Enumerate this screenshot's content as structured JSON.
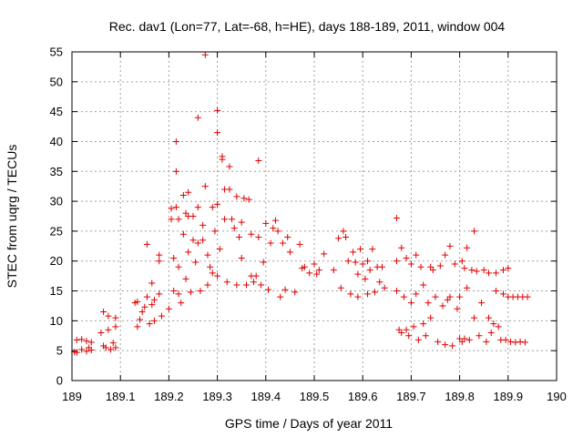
{
  "chart_data": {
    "type": "scatter",
    "title": "Rec. dav1 (Lon=77, Lat=-68, h=HE), days 188-189, 2011, window 004",
    "xlabel": "GPS time / Days of year 2011",
    "ylabel": "STEC from uqrg / TECUs",
    "xlim": [
      189,
      190
    ],
    "ylim": [
      0,
      55
    ],
    "xticks": [
      189,
      189.1,
      189.2,
      189.3,
      189.4,
      189.5,
      189.6,
      189.7,
      189.8,
      189.9,
      190
    ],
    "xtick_labels": [
      "189",
      "189.1",
      "189.2",
      "189.3",
      "189.4",
      "189.5",
      "189.6",
      "189.7",
      "189.8",
      "189.9",
      "190"
    ],
    "yticks": [
      0,
      5,
      10,
      15,
      20,
      25,
      30,
      35,
      40,
      45,
      50,
      55
    ],
    "ytick_labels": [
      "0",
      "5",
      "10",
      "15",
      "20",
      "25",
      "30",
      "35",
      "40",
      "45",
      "50",
      "55"
    ],
    "grid": true,
    "marker": "plus",
    "color": "#e00000",
    "series": [
      {
        "points": [
          [
            189.005,
            4.8
          ],
          [
            189.01,
            4.7
          ],
          [
            189.01,
            6.8
          ],
          [
            189.02,
            5.2
          ],
          [
            189.02,
            6.9
          ],
          [
            189.03,
            4.9
          ],
          [
            189.03,
            6.6
          ],
          [
            189.035,
            5.5
          ],
          [
            189.04,
            5.1
          ],
          [
            189.04,
            6.4
          ],
          [
            189.06,
            8.0
          ],
          [
            189.065,
            11.5
          ],
          [
            189.065,
            5.8
          ],
          [
            189.07,
            5.5
          ],
          [
            189.075,
            8.5
          ],
          [
            189.075,
            10.8
          ],
          [
            189.08,
            5.2
          ],
          [
            189.085,
            6.3
          ],
          [
            189.09,
            5.5
          ],
          [
            189.09,
            9.0
          ],
          [
            189.09,
            10.5
          ],
          [
            189.13,
            13.0
          ],
          [
            189.135,
            13.2
          ],
          [
            189.135,
            9.0
          ],
          [
            189.14,
            10.2
          ],
          [
            189.145,
            11.5
          ],
          [
            189.15,
            12.3
          ],
          [
            189.155,
            22.8
          ],
          [
            189.155,
            14.0
          ],
          [
            189.16,
            9.5
          ],
          [
            189.165,
            16.3
          ],
          [
            189.165,
            12.7
          ],
          [
            189.17,
            13.5
          ],
          [
            189.17,
            10.0
          ],
          [
            189.18,
            14.5
          ],
          [
            189.18,
            20.0
          ],
          [
            189.18,
            21.0
          ],
          [
            189.185,
            10.8
          ],
          [
            189.2,
            12.0
          ],
          [
            189.205,
            28.8
          ],
          [
            189.205,
            27.0
          ],
          [
            189.21,
            20.5
          ],
          [
            189.21,
            15.0
          ],
          [
            189.215,
            40.0
          ],
          [
            189.215,
            35.0
          ],
          [
            189.215,
            29.0
          ],
          [
            189.22,
            27.0
          ],
          [
            189.22,
            19.0
          ],
          [
            189.22,
            14.5
          ],
          [
            189.225,
            13.0
          ],
          [
            189.23,
            24.5
          ],
          [
            189.23,
            31.0
          ],
          [
            189.235,
            28.0
          ],
          [
            189.235,
            17.0
          ],
          [
            189.24,
            31.5
          ],
          [
            189.24,
            27.5
          ],
          [
            189.24,
            21.5
          ],
          [
            189.245,
            14.8
          ],
          [
            189.25,
            27.5
          ],
          [
            189.25,
            23.5
          ],
          [
            189.255,
            19.8
          ],
          [
            189.26,
            44.0
          ],
          [
            189.26,
            29.0
          ],
          [
            189.26,
            23.0
          ],
          [
            189.265,
            15.0
          ],
          [
            189.27,
            26.0
          ],
          [
            189.27,
            23.5
          ],
          [
            189.275,
            54.5
          ],
          [
            189.275,
            32.5
          ],
          [
            189.28,
            21.0
          ],
          [
            189.28,
            16.0
          ],
          [
            189.285,
            19.0
          ],
          [
            189.29,
            29.0
          ],
          [
            189.29,
            18.0
          ],
          [
            189.295,
            25.0
          ],
          [
            189.3,
            45.2
          ],
          [
            189.3,
            41.5
          ],
          [
            189.3,
            29.5
          ],
          [
            189.3,
            17.5
          ],
          [
            189.305,
            22.0
          ],
          [
            189.31,
            37.5
          ],
          [
            189.31,
            37.0
          ],
          [
            189.315,
            32.0
          ],
          [
            189.315,
            27.0
          ],
          [
            189.32,
            16.5
          ],
          [
            189.325,
            35.8
          ],
          [
            189.325,
            32.0
          ],
          [
            189.33,
            27.0
          ],
          [
            189.335,
            25.5
          ],
          [
            189.34,
            30.8
          ],
          [
            189.34,
            16.0
          ],
          [
            189.345,
            24.0
          ],
          [
            189.35,
            26.5
          ],
          [
            189.35,
            20.5
          ],
          [
            189.355,
            30.5
          ],
          [
            189.36,
            16.0
          ],
          [
            189.365,
            30.3
          ],
          [
            189.37,
            24.5
          ],
          [
            189.37,
            17.5
          ],
          [
            189.375,
            16.5
          ],
          [
            189.38,
            17.5
          ],
          [
            189.385,
            36.8
          ],
          [
            189.385,
            24.0
          ],
          [
            189.39,
            16.0
          ],
          [
            189.395,
            19.8
          ],
          [
            189.4,
            26.3
          ],
          [
            189.405,
            15.2
          ],
          [
            189.41,
            23.0
          ],
          [
            189.415,
            25.5
          ],
          [
            189.42,
            26.8
          ],
          [
            189.425,
            25.0
          ],
          [
            189.43,
            14.0
          ],
          [
            189.435,
            23.0
          ],
          [
            189.44,
            15.2
          ],
          [
            189.445,
            24.0
          ],
          [
            189.45,
            21.5
          ],
          [
            189.46,
            14.8
          ],
          [
            189.47,
            22.8
          ],
          [
            189.475,
            18.8
          ],
          [
            189.48,
            19.0
          ],
          [
            189.49,
            18.0
          ],
          [
            189.5,
            19.5
          ],
          [
            189.505,
            17.8
          ],
          [
            189.51,
            18.5
          ],
          [
            189.52,
            21.2
          ],
          [
            189.54,
            18.5
          ],
          [
            189.55,
            23.8
          ],
          [
            189.555,
            15.5
          ],
          [
            189.56,
            25.0
          ],
          [
            189.565,
            24.0
          ],
          [
            189.57,
            20.0
          ],
          [
            189.575,
            14.5
          ],
          [
            189.58,
            21.5
          ],
          [
            189.585,
            19.8
          ],
          [
            189.59,
            17.8
          ],
          [
            189.59,
            14.0
          ],
          [
            189.595,
            22.0
          ],
          [
            189.6,
            19.5
          ],
          [
            189.605,
            17.0
          ],
          [
            189.61,
            20.0
          ],
          [
            189.61,
            14.5
          ],
          [
            189.615,
            18.5
          ],
          [
            189.62,
            22.0
          ],
          [
            189.625,
            14.8
          ],
          [
            189.63,
            19.0
          ],
          [
            189.635,
            16.5
          ],
          [
            189.64,
            19.0
          ],
          [
            189.645,
            15.5
          ],
          [
            189.67,
            27.2
          ],
          [
            189.67,
            20.0
          ],
          [
            189.67,
            15.0
          ],
          [
            189.675,
            8.5
          ],
          [
            189.68,
            8.0
          ],
          [
            189.68,
            22.2
          ],
          [
            189.685,
            14.0
          ],
          [
            189.69,
            20.5
          ],
          [
            189.69,
            8.5
          ],
          [
            189.695,
            7.5
          ],
          [
            189.7,
            19.5
          ],
          [
            189.7,
            13.0
          ],
          [
            189.705,
            9.0
          ],
          [
            189.71,
            21.0
          ],
          [
            189.71,
            14.5
          ],
          [
            189.715,
            6.8
          ],
          [
            189.72,
            19.0
          ],
          [
            189.725,
            9.5
          ],
          [
            189.725,
            16.0
          ],
          [
            189.73,
            7.5
          ],
          [
            189.735,
            13.0
          ],
          [
            189.74,
            19.0
          ],
          [
            189.74,
            10.5
          ],
          [
            189.745,
            18.5
          ],
          [
            189.75,
            14.0
          ],
          [
            189.755,
            6.5
          ],
          [
            189.76,
            19.2
          ],
          [
            189.765,
            12.5
          ],
          [
            189.77,
            21.0
          ],
          [
            189.77,
            6.0
          ],
          [
            189.775,
            13.5
          ],
          [
            189.78,
            22.5
          ],
          [
            189.78,
            14.0
          ],
          [
            189.785,
            5.8
          ],
          [
            189.79,
            19.5
          ],
          [
            189.795,
            12.0
          ],
          [
            189.8,
            14.0
          ],
          [
            189.8,
            7.0
          ],
          [
            189.805,
            20.0
          ],
          [
            189.805,
            6.5
          ],
          [
            189.81,
            18.8
          ],
          [
            189.81,
            7.0
          ],
          [
            189.815,
            22.2
          ],
          [
            189.815,
            15.5
          ],
          [
            189.82,
            6.8
          ],
          [
            189.825,
            18.5
          ],
          [
            189.83,
            25.0
          ],
          [
            189.83,
            10.5
          ],
          [
            189.835,
            18.3
          ],
          [
            189.84,
            7.5
          ],
          [
            189.845,
            13.0
          ],
          [
            189.85,
            18.5
          ],
          [
            189.855,
            6.5
          ],
          [
            189.86,
            10.5
          ],
          [
            189.86,
            18.0
          ],
          [
            189.865,
            8.0
          ],
          [
            189.87,
            9.5
          ],
          [
            189.875,
            15.0
          ],
          [
            189.875,
            18.0
          ],
          [
            189.88,
            9.0
          ],
          [
            189.885,
            6.8
          ],
          [
            189.89,
            14.5
          ],
          [
            189.89,
            18.5
          ],
          [
            189.895,
            6.8
          ],
          [
            189.9,
            14.0
          ],
          [
            189.9,
            18.8
          ],
          [
            189.905,
            6.5
          ],
          [
            189.91,
            14.0
          ],
          [
            189.915,
            6.4
          ],
          [
            189.92,
            14.0
          ],
          [
            189.925,
            6.5
          ],
          [
            189.93,
            14.0
          ],
          [
            189.935,
            6.4
          ],
          [
            189.94,
            14.0
          ]
        ]
      }
    ]
  }
}
